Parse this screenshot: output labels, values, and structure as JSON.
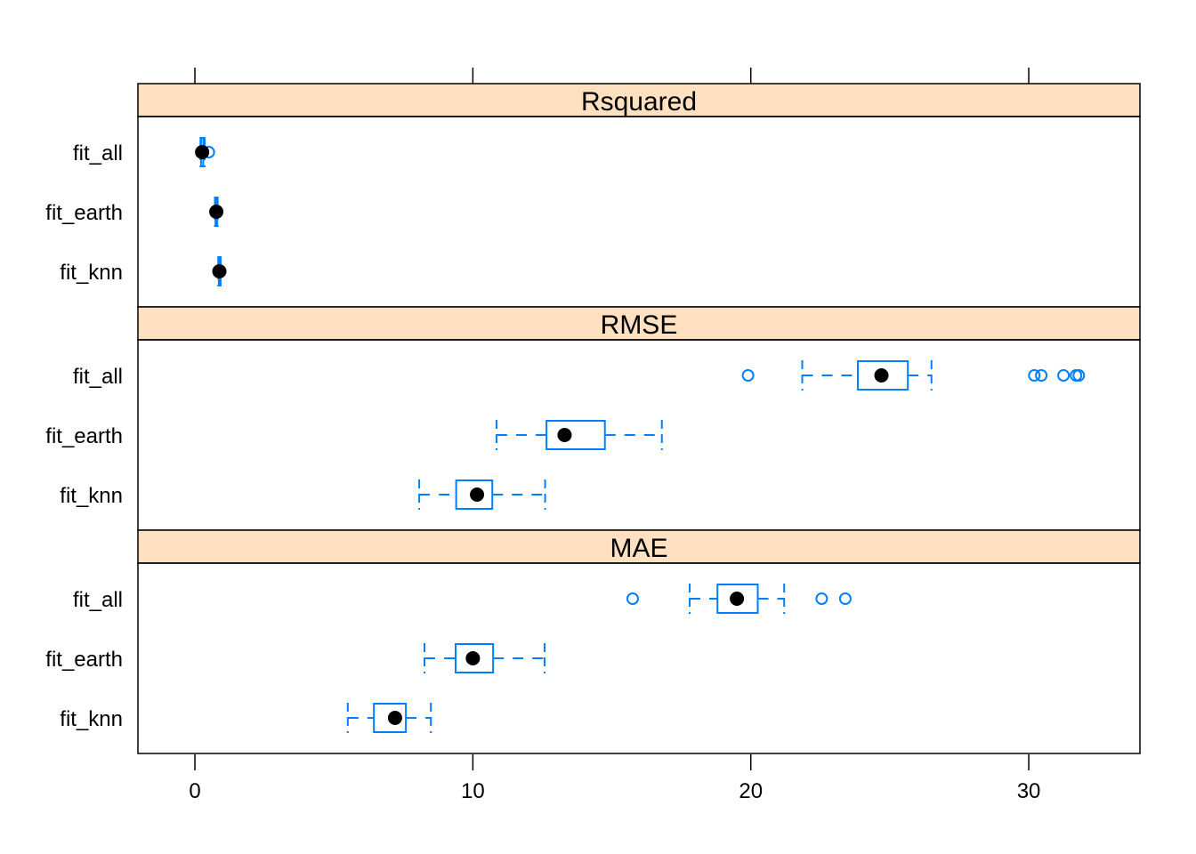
{
  "chart_data": {
    "type": "boxplot",
    "xlim": [
      -2.05,
      34
    ],
    "x_ticks": [
      0,
      10,
      20,
      30
    ],
    "x_tick_labels": [
      "0",
      "10",
      "20",
      "30"
    ],
    "categories": [
      "fit_all",
      "fit_earth",
      "fit_knn"
    ],
    "colors": {
      "strip": "#ffe0c0",
      "box": "#0080ff",
      "median": "#000000"
    },
    "panels": [
      {
        "title": "Rsquared",
        "boxes": [
          {
            "name": "fit_all",
            "min": 0.2,
            "q1": 0.22,
            "median": 0.26,
            "q3": 0.3,
            "max": 0.35,
            "outliers": [
              0.5
            ]
          },
          {
            "name": "fit_earth",
            "min": 0.72,
            "q1": 0.74,
            "median": 0.77,
            "q3": 0.8,
            "max": 0.82,
            "outliers": []
          },
          {
            "name": "fit_knn",
            "min": 0.84,
            "q1": 0.86,
            "median": 0.88,
            "q3": 0.9,
            "max": 0.92,
            "outliers": []
          }
        ]
      },
      {
        "title": "RMSE",
        "boxes": [
          {
            "name": "fit_all",
            "min": 21.85,
            "q1": 23.85,
            "median": 24.7,
            "q3": 25.65,
            "max": 26.5,
            "outliers": [
              19.9,
              30.2,
              30.45,
              31.25,
              31.7,
              31.8
            ]
          },
          {
            "name": "fit_earth",
            "min": 10.85,
            "q1": 12.65,
            "median": 13.3,
            "q3": 14.75,
            "max": 16.8,
            "outliers": []
          },
          {
            "name": "fit_knn",
            "min": 8.07,
            "q1": 9.4,
            "median": 10.15,
            "q3": 10.7,
            "max": 12.6,
            "outliers": []
          }
        ]
      },
      {
        "title": "MAE",
        "boxes": [
          {
            "name": "fit_all",
            "min": 17.8,
            "q1": 18.8,
            "median": 19.5,
            "q3": 20.25,
            "max": 21.2,
            "outliers": [
              15.75,
              22.55,
              23.4
            ]
          },
          {
            "name": "fit_earth",
            "min": 8.26,
            "q1": 9.38,
            "median": 10.0,
            "q3": 10.73,
            "max": 12.58,
            "outliers": []
          },
          {
            "name": "fit_knn",
            "min": 5.5,
            "q1": 6.44,
            "median": 7.2,
            "q3": 7.59,
            "max": 8.49,
            "outliers": []
          }
        ]
      }
    ]
  }
}
